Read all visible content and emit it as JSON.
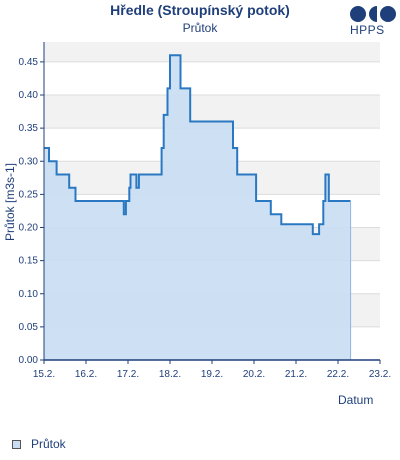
{
  "header": {
    "title": "Hředle (Stroupínský potok)",
    "subtitle": "Průtok",
    "logo_text": "HPPS"
  },
  "chart_data": {
    "type": "area",
    "ylabel": "Průtok [m3s-1]",
    "xlabel": "Datum",
    "x_tick_labels": [
      "15.2.",
      "16.2.",
      "17.2.",
      "18.2.",
      "19.2.",
      "20.2.",
      "21.2.",
      "22.2.",
      "23.2."
    ],
    "y_tick_labels": [
      "0.00",
      "0.05",
      "0.10",
      "0.15",
      "0.20",
      "0.25",
      "0.30",
      "0.35",
      "0.40",
      "0.45"
    ],
    "xlim": [
      0,
      8
    ],
    "ylim": [
      0,
      0.48
    ],
    "series": [
      {
        "name": "Průtok",
        "color": "#2a78c2",
        "fill": "#c9def3",
        "x": [
          0,
          0.12,
          0.12,
          0.3,
          0.3,
          0.6,
          0.6,
          0.75,
          0.75,
          1.9,
          1.9,
          1.95,
          1.95,
          2.03,
          2.03,
          2.06,
          2.06,
          2.2,
          2.2,
          2.26,
          2.26,
          2.38,
          2.38,
          2.8,
          2.8,
          2.85,
          2.85,
          2.94,
          2.94,
          3.0,
          3.0,
          3.25,
          3.25,
          3.48,
          3.48,
          3.8,
          3.8,
          4.5,
          4.5,
          4.6,
          4.6,
          5.05,
          5.05,
          5.4,
          5.4,
          5.65,
          5.65,
          6.4,
          6.4,
          6.55,
          6.55,
          6.65,
          6.65,
          6.7,
          6.7,
          6.78,
          6.78,
          7.3
        ],
        "values": [
          0.32,
          0.32,
          0.3,
          0.3,
          0.28,
          0.28,
          0.26,
          0.26,
          0.24,
          0.24,
          0.22,
          0.22,
          0.24,
          0.24,
          0.26,
          0.26,
          0.28,
          0.28,
          0.26,
          0.26,
          0.28,
          0.28,
          0.28,
          0.28,
          0.32,
          0.32,
          0.37,
          0.37,
          0.41,
          0.41,
          0.46,
          0.46,
          0.41,
          0.41,
          0.36,
          0.36,
          0.36,
          0.36,
          0.32,
          0.32,
          0.28,
          0.28,
          0.24,
          0.24,
          0.22,
          0.22,
          0.205,
          0.205,
          0.19,
          0.19,
          0.205,
          0.205,
          0.24,
          0.24,
          0.28,
          0.28,
          0.24,
          0.24
        ]
      }
    ],
    "grid": true,
    "legend": "bottom-left"
  }
}
